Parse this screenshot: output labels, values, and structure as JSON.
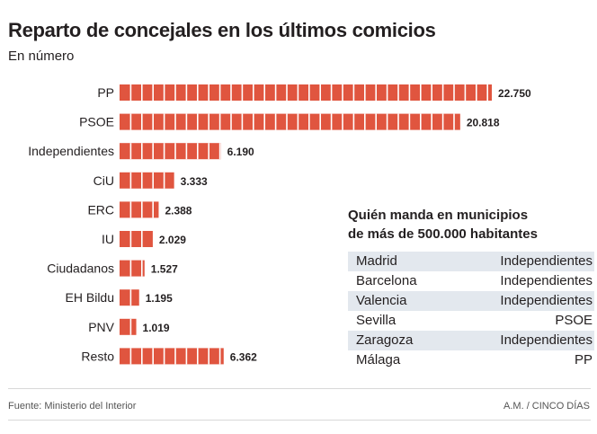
{
  "header": {
    "title": "Reparto de concejales en los últimos comicios",
    "subtitle": "En número"
  },
  "chart_data": {
    "type": "bar",
    "orientation": "horizontal",
    "categories": [
      "PP",
      "PSOE",
      "Independientes",
      "CiU",
      "ERC",
      "IU",
      "Ciudadanos",
      "EH Bildu",
      "PNV",
      "Resto"
    ],
    "values": [
      22750,
      20818,
      6190,
      3333,
      2388,
      2029,
      1527,
      1195,
      1019,
      6362
    ],
    "value_labels": [
      "22.750",
      "20.818",
      "6.190",
      "3.333",
      "2.388",
      "2.029",
      "1.527",
      "1.195",
      "1.019",
      "6.362"
    ],
    "bar_color": "#e0553f",
    "segment_divider_color": "#ffffff",
    "grid": false,
    "xlim": [
      0,
      22750
    ]
  },
  "inset": {
    "title_line1": "Quién manda en municipios",
    "title_line2": "de más de 500.000 habitantes",
    "rows": [
      {
        "city": "Madrid",
        "party": "Independientes"
      },
      {
        "city": "Barcelona",
        "party": "Independientes"
      },
      {
        "city": "Valencia",
        "party": "Independientes"
      },
      {
        "city": "Sevilla",
        "party": "PSOE"
      },
      {
        "city": "Zaragoza",
        "party": "Independientes"
      },
      {
        "city": "Málaga",
        "party": "PP"
      }
    ],
    "shade_color": "#e3e8ee"
  },
  "footer": {
    "source": "Fuente: Ministerio del Interior",
    "credit": "A.M. / CINCO DÍAS"
  }
}
